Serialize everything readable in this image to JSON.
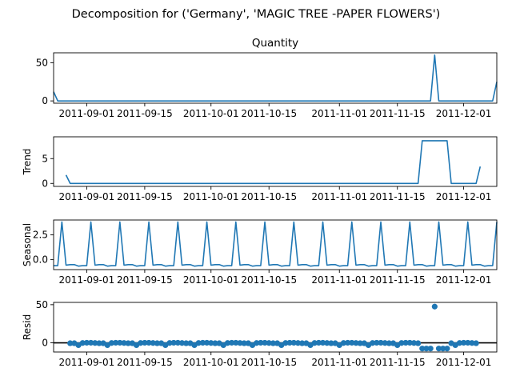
{
  "figure": {
    "suptitle": "Decomposition for ('Germany', 'MAGIC TREE -PAPER FLOWERS')"
  },
  "colors": {
    "series": "#1f77b4",
    "zero_line": "#000000"
  },
  "chart_data": [
    {
      "type": "line",
      "title": "Quantity",
      "ylabel": "",
      "xlim": [
        "2011-08-24",
        "2011-12-09"
      ],
      "ylim": [
        -3,
        63
      ],
      "yticks": [
        0,
        50
      ],
      "xticks": [
        "2011-09-01",
        "2011-09-15",
        "2011-10-01",
        "2011-10-15",
        "2011-11-01",
        "2011-11-15",
        "2011-12-01"
      ],
      "segments": [
        [
          [
            "2011-08-24",
            12
          ],
          [
            "2011-08-25",
            0
          ],
          [
            "2011-11-23",
            0
          ],
          [
            "2011-11-24",
            60
          ],
          [
            "2011-11-25",
            0
          ],
          [
            "2011-12-08",
            0
          ],
          [
            "2011-12-09",
            25
          ]
        ]
      ]
    },
    {
      "type": "line",
      "title": "",
      "ylabel": "Trend",
      "xlim": [
        "2011-08-24",
        "2011-12-09"
      ],
      "ylim": [
        -0.6,
        9.4
      ],
      "yticks": [
        0,
        5
      ],
      "xticks": [
        "2011-09-01",
        "2011-09-15",
        "2011-10-01",
        "2011-10-15",
        "2011-11-01",
        "2011-11-15",
        "2011-12-01"
      ],
      "segments": [
        [
          [
            "2011-08-27",
            1.7
          ],
          [
            "2011-08-28",
            0
          ],
          [
            "2011-11-20",
            0
          ],
          [
            "2011-11-21",
            8.6
          ],
          [
            "2011-11-27",
            8.6
          ],
          [
            "2011-11-28",
            0
          ],
          [
            "2011-12-04",
            0
          ],
          [
            "2011-12-05",
            3.4
          ]
        ]
      ]
    },
    {
      "type": "line",
      "title": "",
      "ylabel": "Seasonal",
      "xlim": [
        "2011-08-24",
        "2011-12-09"
      ],
      "ylim": [
        -1.0,
        4.0
      ],
      "yticks": [
        0.0,
        2.5
      ],
      "xticks": [
        "2011-09-01",
        "2011-09-15",
        "2011-10-01",
        "2011-10-15",
        "2011-11-01",
        "2011-11-15",
        "2011-12-01"
      ],
      "period_start": "2011-08-24",
      "period_pattern": [
        -0.6,
        -0.6,
        3.8,
        -0.55,
        -0.5,
        -0.5,
        -0.65
      ],
      "x_end": "2011-12-09"
    },
    {
      "type": "scatter",
      "title": "",
      "ylabel": "Resid",
      "xlim": [
        "2011-08-24",
        "2011-12-09"
      ],
      "ylim": [
        -12,
        53
      ],
      "yticks": [
        0,
        50
      ],
      "xticks": [
        "2011-09-01",
        "2011-09-15",
        "2011-10-01",
        "2011-10-15",
        "2011-11-01",
        "2011-11-15",
        "2011-12-01"
      ],
      "zero_line": true,
      "points_start": "2011-08-28",
      "points_end": "2011-12-04",
      "points_default": 0,
      "points_period_values": [
        -0.5,
        -0.5,
        -3.0,
        -0.2,
        0.1,
        0.1,
        -0.2
      ],
      "points_overrides": [
        [
          "2011-11-21",
          -7.5
        ],
        [
          "2011-11-22",
          -7.5
        ],
        [
          "2011-11-23",
          -7.5
        ],
        [
          "2011-11-24",
          47.5
        ],
        [
          "2011-11-25",
          -7.5
        ],
        [
          "2011-11-26",
          -7.5
        ],
        [
          "2011-11-27",
          -7.5
        ]
      ]
    }
  ]
}
